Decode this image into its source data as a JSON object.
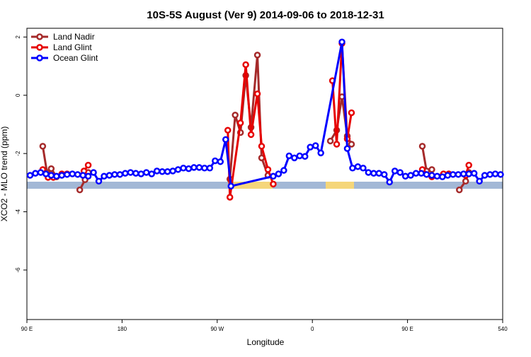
{
  "chart_data": {
    "type": "line",
    "title": "10S-5S August (Ver 9)   2014-09-06 to 2018-12-31",
    "xlabel": "Longitude",
    "ylabel": "XCO2 - MLO trend (ppm)",
    "xlim": [
      90,
      540
    ],
    "ylim": [
      -7.7,
      2.3
    ],
    "xticks": [
      {
        "value": 90,
        "label": "90 E"
      },
      180,
      {
        "value": 270,
        "label": "90 W"
      },
      {
        "value": 360,
        "label": "0"
      },
      {
        "value": 450,
        "label": "90 E"
      },
      540
    ],
    "yticks": [
      -6,
      -4,
      -2,
      0,
      2
    ],
    "legend": "top-left",
    "series": [
      {
        "name": "Land Nadir",
        "color": "#a52a2a",
        "x": [
          105,
          109,
          113,
          118,
          null,
          140,
          145,
          148,
          null,
          282,
          287,
          292,
          297,
          302,
          308,
          312,
          318,
          null,
          377,
          383,
          388,
          393,
          397,
          null,
          464,
          468,
          473,
          null,
          499,
          505,
          508
        ],
        "values": [
          -1.75,
          -2.65,
          -2.52,
          -2.8,
          null,
          -3.25,
          -2.9,
          -2.65,
          null,
          -2.88,
          -0.68,
          -1.28,
          0.68,
          -1.1,
          1.38,
          -2.15,
          -2.75,
          null,
          -1.57,
          -1.2,
          -0.05,
          -1.4,
          -1.68,
          null,
          -1.75,
          -2.6,
          -2.55,
          null,
          -3.25,
          -2.95,
          -2.65
        ]
      },
      {
        "name": "Land Glint",
        "color": "#e60000",
        "x": [
          105,
          110,
          115,
          123,
          128,
          null,
          144,
          148,
          null,
          280,
          282,
          292,
          297,
          302,
          308,
          312,
          318,
          323,
          null,
          379,
          383,
          388,
          393,
          397,
          null,
          464,
          473,
          484,
          489,
          null,
          505,
          508
        ],
        "values": [
          -2.55,
          -2.82,
          -2.82,
          -2.7,
          -2.7,
          null,
          -2.6,
          -2.4,
          null,
          -1.2,
          -3.5,
          -0.95,
          1.05,
          -1.35,
          0.05,
          -1.75,
          -2.55,
          -3.05,
          null,
          0.5,
          -1.68,
          1.78,
          -1.5,
          -0.6,
          null,
          -2.55,
          -2.8,
          -2.7,
          -2.7,
          null,
          -2.75,
          -2.4
        ]
      },
      {
        "name": "Ocean Glint",
        "color": "#0000ff",
        "x": [
          93,
          98,
          103,
          108,
          113,
          118,
          123,
          128,
          133,
          138,
          143,
          148,
          153,
          158,
          163,
          168,
          173,
          178,
          183,
          188,
          193,
          198,
          203,
          208,
          213,
          218,
          223,
          228,
          233,
          238,
          243,
          248,
          253,
          258,
          263,
          268,
          273,
          278,
          283,
          323,
          328,
          333,
          338,
          343,
          348,
          353,
          358,
          363,
          368,
          388,
          393,
          398,
          403,
          408,
          413,
          418,
          423,
          428,
          433,
          438,
          443,
          448,
          453,
          458,
          463,
          468,
          473,
          478,
          483,
          488,
          493,
          498,
          503,
          508,
          513,
          518,
          523,
          528,
          533,
          538
        ],
        "values": [
          -2.75,
          -2.68,
          -2.65,
          -2.7,
          -2.75,
          -2.78,
          -2.75,
          -2.72,
          -2.7,
          -2.72,
          -2.75,
          -2.78,
          -2.65,
          -2.95,
          -2.78,
          -2.75,
          -2.72,
          -2.72,
          -2.68,
          -2.65,
          -2.68,
          -2.7,
          -2.65,
          -2.7,
          -2.6,
          -2.62,
          -2.62,
          -2.6,
          -2.55,
          -2.5,
          -2.52,
          -2.48,
          -2.48,
          -2.5,
          -2.5,
          -2.25,
          -2.28,
          -1.52,
          -3.12,
          -2.78,
          -2.7,
          -2.58,
          -2.08,
          -2.15,
          -2.08,
          -2.1,
          -1.78,
          -1.73,
          -1.98,
          1.83,
          -1.83,
          -2.5,
          -2.45,
          -2.5,
          -2.65,
          -2.68,
          -2.68,
          -2.72,
          -2.98,
          -2.6,
          -2.65,
          -2.78,
          -2.75,
          -2.68,
          -2.68,
          -2.72,
          -2.75,
          -2.78,
          -2.8,
          -2.75,
          -2.72,
          -2.72,
          -2.7,
          -2.7,
          -2.68,
          -2.95,
          -2.75,
          -2.72,
          -2.7,
          -2.72
        ]
      }
    ]
  }
}
